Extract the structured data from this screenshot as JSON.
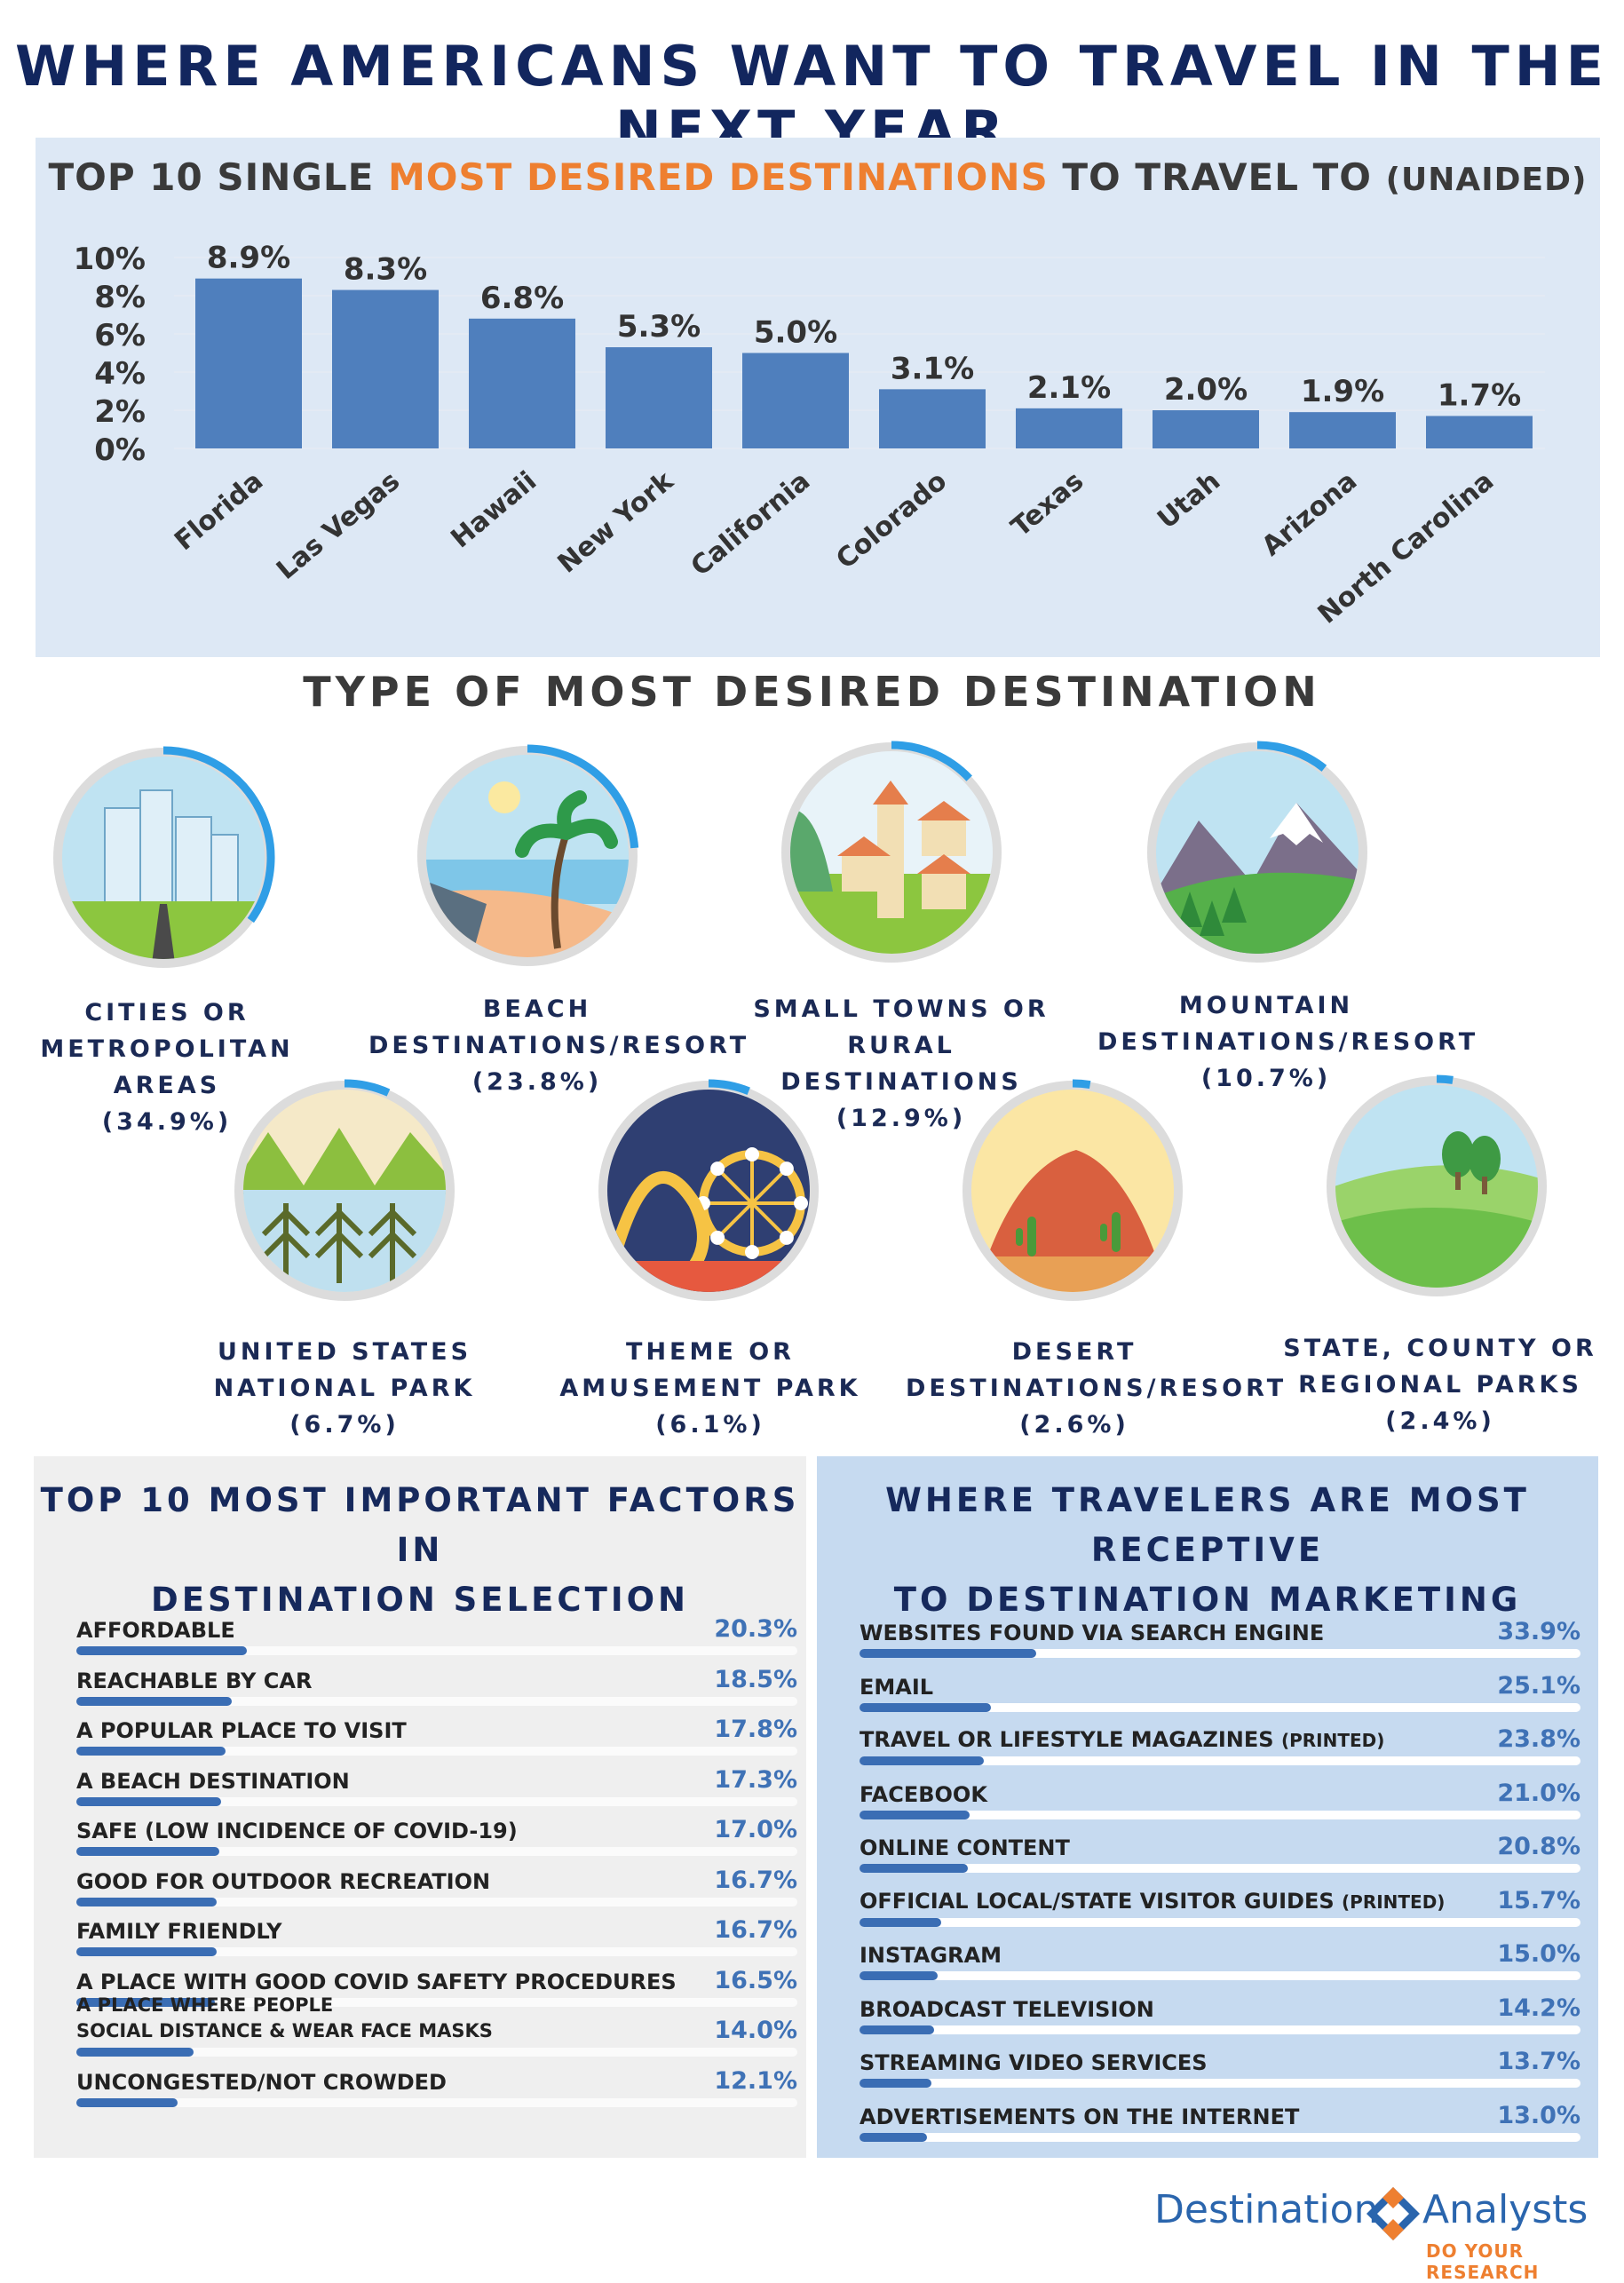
{
  "title": "WHERE AMERICANS WANT TO TRAVEL IN THE NEXT YEAR",
  "destinations": {
    "title_part1": "TOP 10 SINGLE ",
    "title_highlight": "MOST DESIRED DESTINATIONS",
    "title_part2": " TO TRAVEL TO ",
    "title_suffix": "(UNAIDED)"
  },
  "chart_data": {
    "type": "bar",
    "title": "TOP 10 SINGLE MOST DESIRED DESTINATIONS TO TRAVEL TO (UNAIDED)",
    "categories": [
      "Florida",
      "Las Vegas",
      "Hawaii",
      "New York",
      "California",
      "Colorado",
      "Texas",
      "Utah",
      "Arizona",
      "North Carolina"
    ],
    "values": [
      8.9,
      8.3,
      6.8,
      5.3,
      5.0,
      3.1,
      2.1,
      2.0,
      1.9,
      1.7
    ],
    "value_labels": [
      "8.9%",
      "8.3%",
      "6.8%",
      "5.3%",
      "5.0%",
      "3.1%",
      "2.1%",
      "2.0%",
      "1.9%",
      "1.7%"
    ],
    "y_ticks": [
      "10%",
      "8%",
      "6%",
      "4%",
      "2%",
      "0%"
    ],
    "ylim": [
      0,
      10
    ],
    "grid": true,
    "bar_color": "#4f7fbd"
  },
  "types": {
    "heading": "TYPE OF MOST DESIRED DESTINATION",
    "items": [
      {
        "line1": "CITIES OR",
        "line2": "METROPOLITAN AREAS",
        "pct": "(34.9%)",
        "share": 34.9,
        "icon": "city-icon"
      },
      {
        "line1": "BEACH",
        "line2": "DESTINATIONS/RESORT",
        "pct": "(23.8%)",
        "share": 23.8,
        "icon": "beach-icon"
      },
      {
        "line1": "SMALL TOWNS OR",
        "line2": "RURAL DESTINATIONS",
        "pct": "(12.9%)",
        "share": 12.9,
        "icon": "small-town-icon"
      },
      {
        "line1": "MOUNTAIN",
        "line2": "DESTINATIONS/RESORT",
        "pct": "(10.7%)",
        "share": 10.7,
        "icon": "mountain-icon"
      },
      {
        "line1": "UNITED STATES",
        "line2": "NATIONAL PARK",
        "pct": "(6.7%)",
        "share": 6.7,
        "icon": "national-park-icon"
      },
      {
        "line1": "THEME OR",
        "line2": "AMUSEMENT PARK",
        "pct": "(6.1%)",
        "share": 6.1,
        "icon": "theme-park-icon"
      },
      {
        "line1": "DESERT",
        "line2": "DESTINATIONS/RESORT",
        "pct": "(2.6%)",
        "share": 2.6,
        "icon": "desert-icon"
      },
      {
        "line1": "STATE, COUNTY OR",
        "line2": "REGIONAL PARKS",
        "pct": "(2.4%)",
        "share": 2.4,
        "icon": "park-icon"
      }
    ]
  },
  "factors": {
    "title_line1": "TOP 10 MOST IMPORTANT FACTORS IN",
    "title_line2": "DESTINATION SELECTION",
    "rows": [
      {
        "label": "AFFORDABLE",
        "value": "20.3%",
        "pct": 20.3
      },
      {
        "label": "REACHABLE BY CAR",
        "value": "18.5%",
        "pct": 18.5
      },
      {
        "label": "A POPULAR PLACE TO VISIT",
        "value": "17.8%",
        "pct": 17.8
      },
      {
        "label": "A BEACH DESTINATION",
        "value": "17.3%",
        "pct": 17.3
      },
      {
        "label": "SAFE (LOW INCIDENCE OF COVID-19)",
        "value": "17.0%",
        "pct": 17.0
      },
      {
        "label": "GOOD FOR OUTDOOR RECREATION",
        "value": "16.7%",
        "pct": 16.7
      },
      {
        "label": "FAMILY FRIENDLY",
        "value": "16.7%",
        "pct": 16.7
      },
      {
        "label": "A PLACE WITH GOOD COVID SAFETY PROCEDURES",
        "value": "16.5%",
        "pct": 16.5
      },
      {
        "label_line1": "A PLACE WHERE PEOPLE",
        "label_line2": "SOCIAL DISTANCE & WEAR FACE MASKS",
        "value": "14.0%",
        "pct": 14.0
      },
      {
        "label": "UNCONGESTED/NOT CROWDED",
        "value": "12.1%",
        "pct": 12.1
      }
    ]
  },
  "channels": {
    "title_line1": "WHERE TRAVELERS ARE MOST RECEPTIVE",
    "title_line2": "TO DESTINATION MARKETING",
    "rows": [
      {
        "label": "WEBSITES FOUND VIA SEARCH ENGINE",
        "value": "33.9%",
        "pct": 33.9
      },
      {
        "label": "EMAIL",
        "value": "25.1%",
        "pct": 25.1
      },
      {
        "label": "TRAVEL OR LIFESTYLE MAGAZINES",
        "sub": "(PRINTED)",
        "value": "23.8%",
        "pct": 23.8
      },
      {
        "label": "FACEBOOK",
        "value": "21.0%",
        "pct": 21.0
      },
      {
        "label": "ONLINE CONTENT",
        "value": "20.8%",
        "pct": 20.8
      },
      {
        "label": "OFFICIAL LOCAL/STATE VISITOR GUIDES",
        "sub": "(PRINTED)",
        "value": "15.7%",
        "pct": 15.7
      },
      {
        "label": "INSTAGRAM",
        "value": "15.0%",
        "pct": 15.0
      },
      {
        "label": "BROADCAST TELEVISION",
        "value": "14.2%",
        "pct": 14.2
      },
      {
        "label": "STREAMING VIDEO SERVICES",
        "value": "13.7%",
        "pct": 13.7
      },
      {
        "label": "ADVERTISEMENTS ON THE INTERNET",
        "value": "13.0%",
        "pct": 13.0
      }
    ]
  },
  "logo": {
    "word1": "Destination",
    "word2": "Analysts",
    "tagline": "DO YOUR RESEARCH"
  }
}
